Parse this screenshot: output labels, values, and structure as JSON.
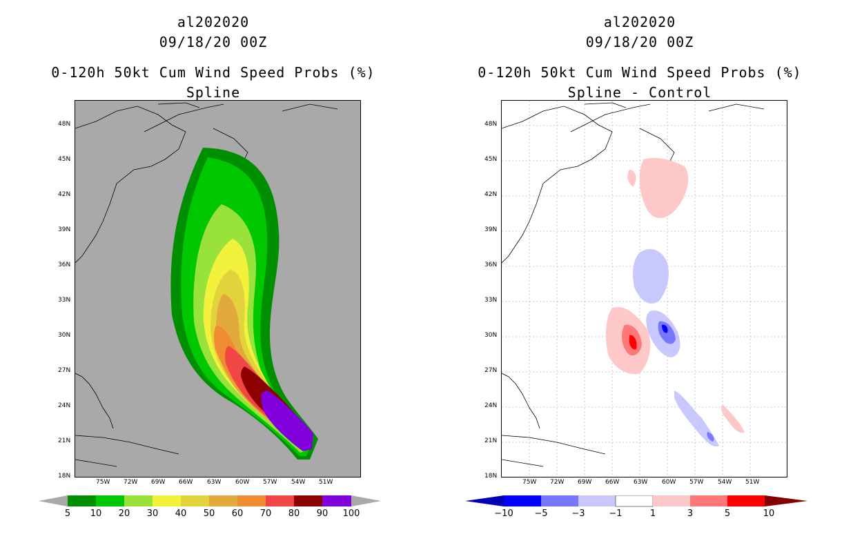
{
  "left": {
    "storm_id": "al202020",
    "time": "09/18/20 00Z",
    "product": "0-120h 50kt Cum Wind Speed Probs (%)",
    "subtitle": "Spline",
    "colorbar": {
      "labels": [
        "5",
        "10",
        "20",
        "30",
        "40",
        "50",
        "60",
        "70",
        "80",
        "90",
        "100"
      ],
      "colors": [
        "#008f00",
        "#00c800",
        "#99e23c",
        "#f2f23c",
        "#e2d23c",
        "#e2aa3c",
        "#f08c32",
        "#f04646",
        "#8c0000",
        "#8200dc"
      ]
    },
    "background_color": "#a9a9a9"
  },
  "right": {
    "storm_id": "al202020",
    "time": "09/18/20 00Z",
    "product": "0-120h 50kt Cum Wind Speed Probs (%)",
    "subtitle": "Spline - Control",
    "colorbar": {
      "labels": [
        "−10",
        "−5",
        "−3",
        "−1",
        "1",
        "3",
        "5",
        "10"
      ],
      "colors": [
        "#0000b4",
        "#0000ff",
        "#7878ff",
        "#c8c8ff",
        "#ffffff",
        "#ffc8c8",
        "#ff7878",
        "#ff0000",
        "#820000"
      ]
    }
  },
  "axes": {
    "lat_labels": [
      "48N",
      "45N",
      "42N",
      "39N",
      "36N",
      "33N",
      "30N",
      "27N",
      "24N",
      "21N",
      "18N"
    ],
    "lon_labels": [
      "75W",
      "72W",
      "69W",
      "66W",
      "63W",
      "60W",
      "57W",
      "54W",
      "51W"
    ]
  }
}
